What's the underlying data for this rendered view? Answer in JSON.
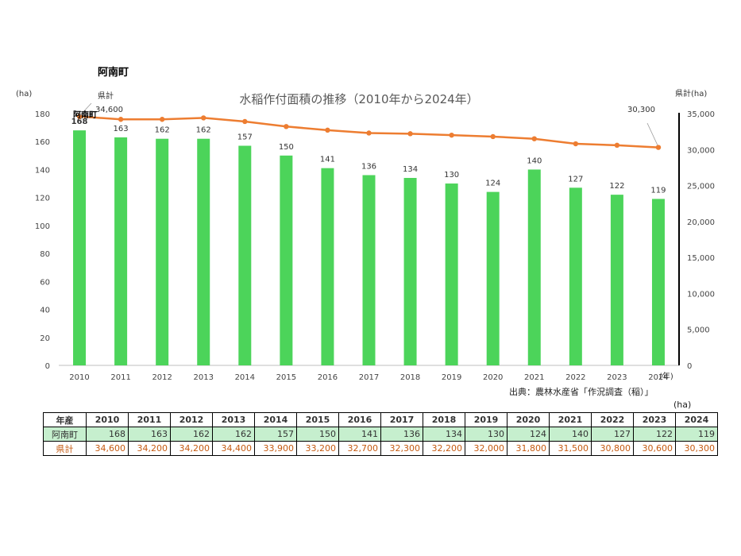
{
  "chart_data": {
    "type": "bar+line",
    "title": "水稲作付面積の推移（2010年から2024年）",
    "town_label": "阿南町",
    "left_unit": "(ha)",
    "right_unit": "県計(ha)",
    "x_unit": "(年)",
    "categories": [
      "2010",
      "2011",
      "2012",
      "2013",
      "2014",
      "2015",
      "2016",
      "2017",
      "2018",
      "2019",
      "2020",
      "2021",
      "2022",
      "2023",
      "2024"
    ],
    "series": [
      {
        "name": "阿南町",
        "kind": "bar",
        "axis": "left",
        "color": "#4cd45a",
        "values": [
          168,
          163,
          162,
          162,
          157,
          150,
          141,
          136,
          134,
          130,
          124,
          140,
          127,
          122,
          119
        ]
      },
      {
        "name": "県計",
        "kind": "line",
        "axis": "right",
        "color": "#ed7d31",
        "values": [
          34600,
          34200,
          34200,
          34400,
          33900,
          33200,
          32700,
          32300,
          32200,
          32000,
          31800,
          31500,
          30800,
          30600,
          30300
        ]
      }
    ],
    "ylim_left": [
      0,
      180
    ],
    "yticks_left": [
      "0",
      "20",
      "40",
      "60",
      "80",
      "100",
      "120",
      "140",
      "160",
      "180"
    ],
    "ylim_right": [
      0,
      35000
    ],
    "yticks_right": [
      "0",
      "5,000",
      "10,000",
      "15,000",
      "20,000",
      "25,000",
      "30,000",
      "35,000"
    ],
    "callouts": {
      "bar_series": "阿南町",
      "line_series": "県計",
      "line_first": "34,600",
      "line_last": "30,300"
    }
  },
  "source": "出典：農林水産省「作況調査（稲）」",
  "table": {
    "unit": "(ha)",
    "header_label": "年産",
    "years": [
      "2010",
      "2011",
      "2012",
      "2013",
      "2014",
      "2015",
      "2016",
      "2017",
      "2018",
      "2019",
      "2020",
      "2021",
      "2022",
      "2023",
      "2024"
    ],
    "rows": [
      {
        "label": "阿南町",
        "values": [
          "168",
          "163",
          "162",
          "162",
          "157",
          "150",
          "141",
          "136",
          "134",
          "130",
          "124",
          "140",
          "127",
          "122",
          "119"
        ]
      },
      {
        "label": "県計",
        "values": [
          "34,600",
          "34,200",
          "34,200",
          "34,400",
          "33,900",
          "33,200",
          "32,700",
          "32,300",
          "32,200",
          "32,000",
          "31,800",
          "31,500",
          "30,800",
          "30,600",
          "30,300"
        ]
      }
    ]
  }
}
